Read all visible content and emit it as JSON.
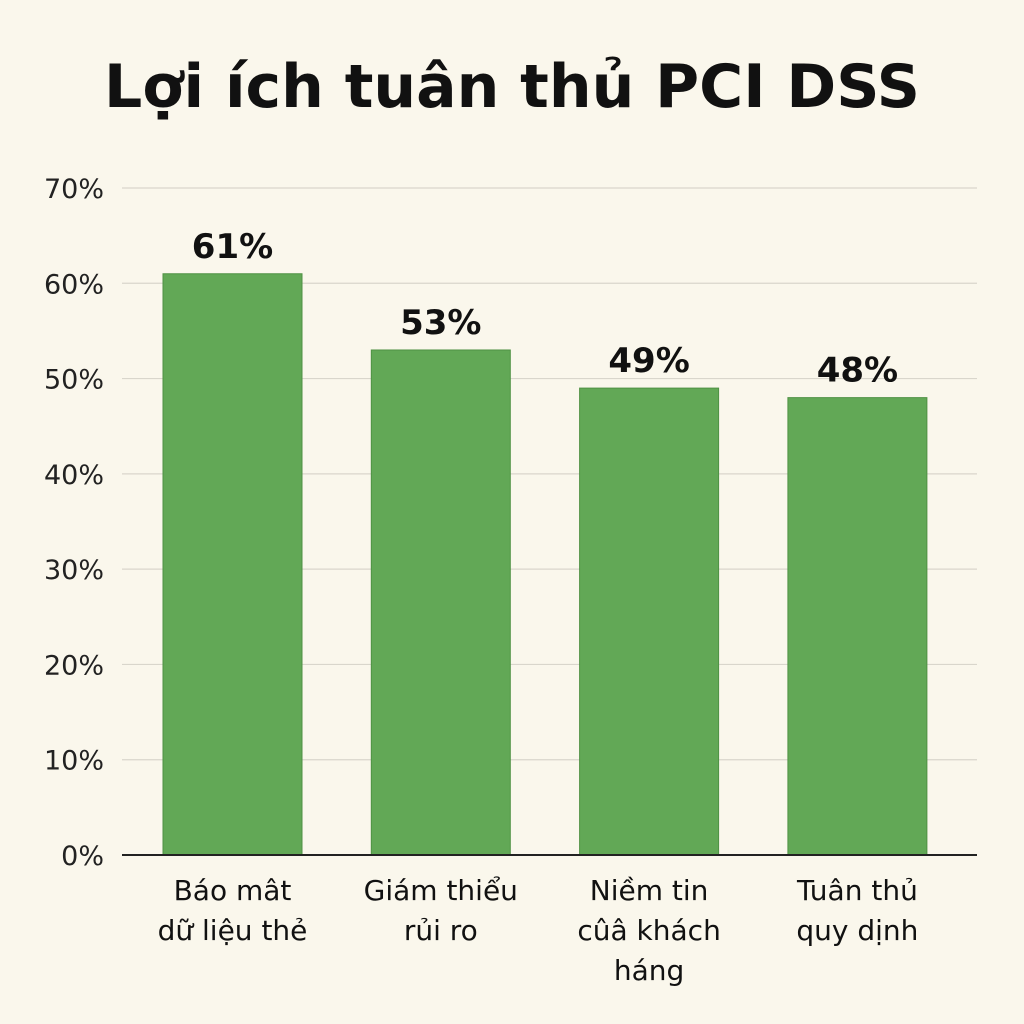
{
  "chart_data": {
    "type": "bar",
    "title": "Lợi ích tuân thủ PCI DSS",
    "categories": [
      [
        "Báo mât",
        "dữ liệu thẻ"
      ],
      [
        "Giám thiểu",
        "rủi ro"
      ],
      [
        "Niềm tin",
        "cûâ khách",
        "háng"
      ],
      [
        "Tuân thủ",
        "quy dịnh"
      ]
    ],
    "values": [
      61,
      53,
      49,
      48
    ],
    "data_labels": [
      "61%",
      "53%",
      "49%",
      "48%"
    ],
    "xlabel": "",
    "ylabel": "",
    "ylim": [
      0,
      70
    ],
    "yticks": [
      "0%",
      "10%",
      "20%",
      "30%",
      "40%",
      "50%",
      "60%",
      "70%"
    ],
    "grid": true,
    "legend": "none",
    "colors": {
      "bar": "#62a856",
      "background": "#faf7ec",
      "grid": "#d9d6cc"
    }
  }
}
